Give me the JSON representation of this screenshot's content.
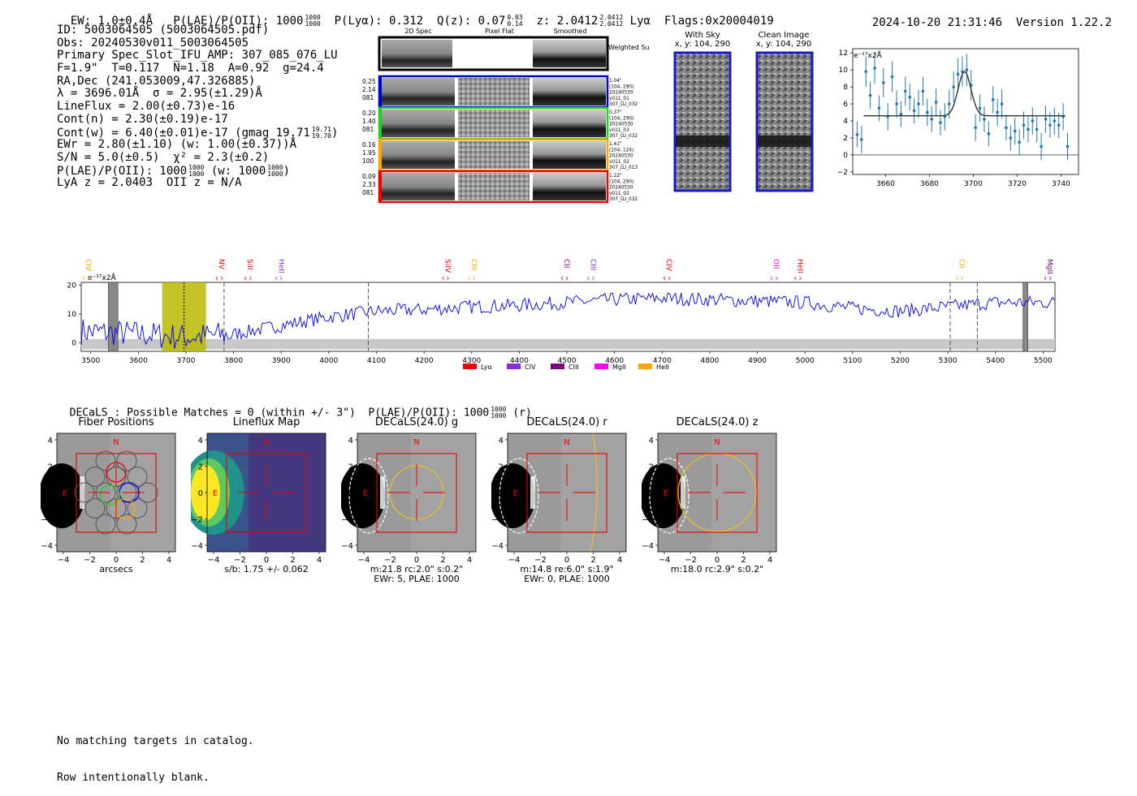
{
  "header": {
    "ew": "EW: 1.0±0.4Å",
    "plae_label": "P(LAE)/P(OII): 1000",
    "plae_hi": "1000",
    "plae_lo": "1000",
    "plya": "P(Lyα): 0.312",
    "qz_label": "Q(z): 0.07",
    "qz_hi": "0.03",
    "qz_lo": "0.14",
    "z_label": "z: 2.0412",
    "z_hi": "2.0412",
    "z_lo": "2.0412",
    "z_line": "Lyα",
    "flags": "Flags:0x20004019",
    "timestamp": "2024-10-20 21:31:46",
    "version": "Version 1.22.2"
  },
  "info": {
    "id": "ID: 5003064505 (5003064505.pdf)",
    "obs": "Obs: 20240530v011_5003064505",
    "slot": "Primary Spec_Slot_IFU_AMP: 307_085_076_LU",
    "params": "F=1.9\"  T=0.117  N=1.18  A=0.92  g=24.4",
    "radec": "RA,Dec (241.053009,47.326885)",
    "lambda": "λ = 3696.01Å  σ = 2.95(±1.29)Å",
    "lineflux": "LineFlux = 2.00(±0.73)e-16",
    "contn": "Cont(n) = 2.30(±0.19)e-17",
    "contw": "Cont(w) = 6.40(±0.01)e-17 (gmag 19.71",
    "contw_hi": "19.71",
    "contw_lo": "19.70",
    "contw_end": ")",
    "ewr": "EWr = 2.80(±1.10) (w: 1.00(±0.37))Å",
    "sn": "S/N = 5.0(±0.5)  χ² = 2.3(±0.2)",
    "plae": "P(LAE)/P(OII): 1000",
    "plae_hi": "1000",
    "plae_lo": "1000",
    "plae_w": "(w: 1000",
    "plae_w_hi": "1000",
    "plae_w_lo": "1000",
    "plae_w_end": ")",
    "lyaz": "LyA z = 2.0403  OII z = N/A"
  },
  "spec2d": {
    "col_titles": [
      "2D Spec",
      "Pixel Flat",
      "Smoothed"
    ],
    "weighted_label": "Weighted Sum",
    "rows": [
      {
        "left": [
          "0.25",
          "2.14",
          "081"
        ],
        "right": [
          "1.04\"",
          "(104, 290)",
          "20240530",
          "v011_01",
          "307_LU_032"
        ],
        "color": "#0000cc"
      },
      {
        "left": [
          "0.20",
          "1.40",
          "081"
        ],
        "right": [
          "0.37\"",
          "(104, 290)",
          "20240530",
          "v011_03",
          "307_LU_032"
        ],
        "color": "#22cc22"
      },
      {
        "left": [
          "0.16",
          "1.95",
          "100"
        ],
        "right": [
          "1.41\"",
          "(104, 124)",
          "20240530",
          "v011_02",
          "307_LU_013"
        ],
        "color": "#ffa500"
      },
      {
        "left": [
          "0.09",
          "2.33",
          "081"
        ],
        "right": [
          "1.22\"",
          "(104, 290)",
          "20240530",
          "v011_02",
          "307_LU_032"
        ],
        "color": "#ee0000"
      }
    ]
  },
  "sky": {
    "with_sky_title": "With Sky",
    "with_sky_xy": "x, y: 104, 290",
    "clean_title": "Clean Image",
    "clean_xy": "x, y: 104, 290"
  },
  "zoom_chart": {
    "unit_label": "e⁻¹⁷x2Å",
    "chart_data": {
      "type": "scatter",
      "title": "",
      "xlabel": "",
      "ylabel": "e-17 x2Å",
      "xlim": [
        3645,
        3748
      ],
      "ylim": [
        -2.3,
        12.5
      ],
      "xticks": [
        3660,
        3680,
        3700,
        3720,
        3740
      ],
      "yticks": [
        -2,
        0,
        2,
        4,
        6,
        8,
        10,
        12
      ],
      "points": [
        [
          3647,
          2.4,
          1.5
        ],
        [
          3649,
          1.8,
          1.6
        ],
        [
          3651,
          9.8,
          1.8
        ],
        [
          3653,
          7.0,
          1.6
        ],
        [
          3655,
          10.2,
          1.8
        ],
        [
          3657,
          5.5,
          1.5
        ],
        [
          3659,
          8.5,
          1.7
        ],
        [
          3661,
          4.5,
          1.6
        ],
        [
          3663,
          9.2,
          1.8
        ],
        [
          3665,
          6.0,
          1.6
        ],
        [
          3667,
          4.8,
          1.5
        ],
        [
          3669,
          7.5,
          1.7
        ],
        [
          3671,
          6.8,
          1.6
        ],
        [
          3673,
          5.2,
          1.5
        ],
        [
          3675,
          6.0,
          1.6
        ],
        [
          3677,
          7.5,
          1.7
        ],
        [
          3679,
          5.0,
          1.6
        ],
        [
          3681,
          4.2,
          1.5
        ],
        [
          3683,
          6.2,
          1.6
        ],
        [
          3685,
          3.8,
          1.5
        ],
        [
          3687,
          4.5,
          1.6
        ],
        [
          3689,
          6.0,
          1.7
        ],
        [
          3691,
          8.0,
          1.8
        ],
        [
          3693,
          9.5,
          1.9
        ],
        [
          3695,
          9.8,
          1.8
        ],
        [
          3697,
          10.0,
          1.9
        ],
        [
          3699,
          8.2,
          1.8
        ],
        [
          3701,
          3.2,
          1.6
        ],
        [
          3703,
          5.5,
          1.6
        ],
        [
          3705,
          4.2,
          1.5
        ],
        [
          3707,
          2.5,
          1.5
        ],
        [
          3709,
          6.5,
          1.6
        ],
        [
          3711,
          5.0,
          1.6
        ],
        [
          3713,
          6.0,
          1.7
        ],
        [
          3715,
          3.2,
          1.5
        ],
        [
          3717,
          2.0,
          1.5
        ],
        [
          3719,
          2.8,
          1.6
        ],
        [
          3721,
          1.5,
          1.5
        ],
        [
          3723,
          3.5,
          1.6
        ],
        [
          3725,
          3.0,
          1.5
        ],
        [
          3727,
          4.0,
          1.6
        ],
        [
          3729,
          3.0,
          1.5
        ],
        [
          3731,
          1.0,
          1.6
        ],
        [
          3733,
          4.2,
          1.6
        ],
        [
          3735,
          3.5,
          1.5
        ],
        [
          3737,
          4.0,
          1.6
        ],
        [
          3739,
          3.5,
          1.5
        ],
        [
          3741,
          4.5,
          1.6
        ],
        [
          3743,
          1.0,
          1.6
        ]
      ],
      "fit_model": {
        "continuum": 4.6,
        "peak": 9.8,
        "center": 3696.0,
        "sigma": 2.95,
        "xrange": [
          3650,
          3742
        ]
      }
    }
  },
  "full_spec": {
    "unit_label": "e⁻¹⁷x2Å",
    "line_marks": [
      {
        "name": "CIV",
        "x": 3490,
        "color": "#ffa500"
      },
      {
        "name": "NV",
        "x": 3770,
        "color": "#ee0000"
      },
      {
        "name": "SiII",
        "x": 3830,
        "color": "#ee0000"
      },
      {
        "name": "HeII",
        "x": 3895,
        "color": "#8a2be2"
      },
      {
        "name": "SiIV",
        "x": 4245,
        "color": "#ee0000"
      },
      {
        "name": "CIII",
        "x": 4300,
        "color": "#ffa500"
      },
      {
        "name": "CII",
        "x": 4495,
        "color": "#800080"
      },
      {
        "name": "CIII",
        "x": 4550,
        "color": "#8a2be2"
      },
      {
        "name": "CIV",
        "x": 4710,
        "color": "#ee0000"
      },
      {
        "name": "OII",
        "x": 4935,
        "color": "#ff00ff"
      },
      {
        "name": "HeII",
        "x": 4985,
        "color": "#ee0000"
      },
      {
        "name": "CII",
        "x": 5325,
        "color": "#ffa500"
      },
      {
        "name": "MgII",
        "x": 5510,
        "color": "#800080"
      }
    ],
    "legend": [
      {
        "label": "Lyα",
        "color": "#ee0000"
      },
      {
        "label": "CIV",
        "color": "#8a2be2"
      },
      {
        "label": "CIII",
        "color": "#800080"
      },
      {
        "label": "MgII",
        "color": "#ff00ff"
      },
      {
        "label": "HeII",
        "color": "#ffa500"
      }
    ],
    "chart_data": {
      "type": "line",
      "title": "",
      "xlabel": "",
      "ylabel": "e-17 x2Å",
      "xlim": [
        3480,
        5525
      ],
      "ylim": [
        -3,
        21
      ],
      "xticks": [
        3500,
        3600,
        3700,
        3800,
        3900,
        4000,
        4100,
        4200,
        4300,
        4400,
        4500,
        4600,
        4700,
        4800,
        4900,
        5000,
        5100,
        5200,
        5300,
        5400,
        5500
      ],
      "yticks": [
        0,
        10,
        20
      ],
      "highlight_band": [
        3650,
        3742
      ],
      "emission_line": 3696,
      "dashed_lines": [
        3780,
        4083,
        5305,
        5362
      ],
      "masked_regions": [
        [
          3537,
          3557
        ],
        [
          5458,
          5468
        ]
      ],
      "trend": [
        [
          3480,
          4
        ],
        [
          3600,
          3
        ],
        [
          3700,
          2
        ],
        [
          3800,
          3
        ],
        [
          3900,
          6
        ],
        [
          4000,
          9
        ],
        [
          4100,
          11
        ],
        [
          4200,
          11.5
        ],
        [
          4300,
          12.5
        ],
        [
          4400,
          13
        ],
        [
          4500,
          14
        ],
        [
          4600,
          15
        ],
        [
          4700,
          15.5
        ],
        [
          4800,
          15
        ],
        [
          4900,
          14.5
        ],
        [
          5000,
          14
        ],
        [
          5100,
          12
        ],
        [
          5200,
          11
        ],
        [
          5300,
          12.5
        ],
        [
          5400,
          14
        ],
        [
          5525,
          14
        ]
      ]
    }
  },
  "decals_header": {
    "text": "DECaLS : Possible Matches = 0 (within +/- 3\")  P(LAE)/P(OII): 1000",
    "frac_hi": "1000",
    "frac_lo": "1000",
    "suffix": "(r)"
  },
  "cutouts": [
    {
      "title": "Fiber Positions",
      "caption1": "arcsecs",
      "caption2": ""
    },
    {
      "title": "Lineflux Map",
      "caption1": "s/b: 1.75 +/- 0.062",
      "caption2": ""
    },
    {
      "title": "DECaLS(24.0) g",
      "caption1": "m:21.8 rc:2.0\"  s:0.2\"",
      "caption2": "EWr: 5, PLAE: 1000"
    },
    {
      "title": "DECaLS(24.0) r",
      "caption1": "m:14.8  re:6.0\"  s:1.9\"",
      "caption2": "EWr: 0, PLAE: 1000"
    },
    {
      "title": "DECaLS(24.0) z",
      "caption1": "m:18.0 rc:2.9\"  s:0.2\"",
      "caption2": ""
    }
  ],
  "cutout_axes": {
    "ticks": [
      "−4",
      "−2",
      "0",
      "2",
      "4"
    ],
    "north": "N",
    "east": "E"
  },
  "footer": {
    "line1": "No matching targets in catalog.",
    "line2": "Row intentionally blank."
  }
}
